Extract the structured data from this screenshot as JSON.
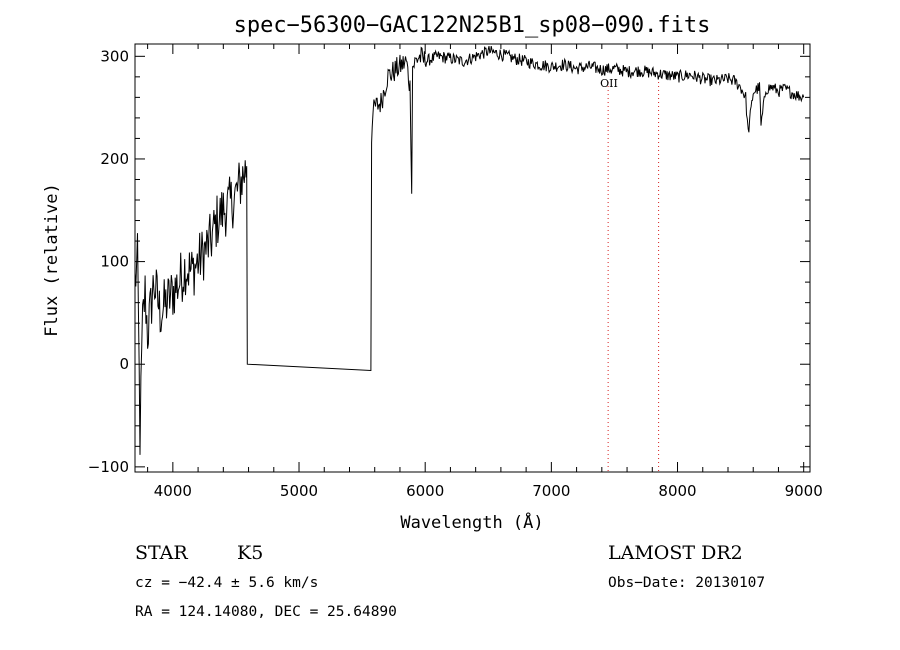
{
  "chart_data": {
    "type": "line",
    "title": "spec−56300−GAC122N25B1_sp08−090.fits",
    "xlabel": "Wavelength (Å)",
    "ylabel": "Flux (relative)",
    "xlim": [
      3700,
      9050
    ],
    "ylim": [
      -105,
      312
    ],
    "x_ticks": [
      4000,
      5000,
      6000,
      7000,
      8000,
      9000
    ],
    "y_ticks": [
      -100,
      0,
      100,
      200,
      300
    ],
    "grid": false,
    "series": [
      {
        "x": [
          3700,
          3720,
          3740,
          3760,
          3780,
          3800,
          3850,
          3900,
          3950,
          4000,
          4050,
          4100,
          4150,
          4200,
          4250,
          4300,
          4350,
          4400,
          4450,
          4500,
          4530,
          4560,
          4580,
          4585,
          4590,
          5570,
          5575,
          5580,
          5600,
          5650,
          5700,
          5750,
          5800,
          5850,
          5880,
          5893,
          5900,
          5950,
          6000,
          6100,
          6200,
          6300,
          6400,
          6500,
          6600,
          6700,
          6800,
          6900,
          7000,
          7100,
          7200,
          7300,
          7400,
          7500,
          7600,
          7700,
          7800,
          7900,
          8000,
          8100,
          8200,
          8300,
          8400,
          8450,
          8500,
          8540,
          8560,
          8600,
          8650,
          8662,
          8700,
          8750,
          8800,
          8850,
          8900,
          8950,
          9000
        ],
        "y": [
          80,
          100,
          -70,
          40,
          70,
          30,
          80,
          50,
          60,
          70,
          80,
          95,
          90,
          100,
          110,
          120,
          140,
          150,
          155,
          165,
          175,
          185,
          190,
          200,
          0,
          0,
          220,
          240,
          250,
          255,
          280,
          285,
          290,
          295,
          270,
          175,
          290,
          300,
          295,
          300,
          298,
          295,
          300,
          305,
          302,
          298,
          295,
          292,
          290,
          292,
          288,
          290,
          287,
          288,
          285,
          286,
          284,
          282,
          280,
          282,
          278,
          276,
          278,
          276,
          270,
          260,
          225,
          265,
          270,
          232,
          268,
          270,
          266,
          268,
          265,
          262,
          260
        ]
      }
    ],
    "markers": [
      {
        "label": "OII",
        "x": 7450
      },
      {
        "label": "",
        "x": 7850
      }
    ]
  },
  "info": {
    "class": "STAR",
    "subclass": "K5",
    "survey": "LAMOST DR2",
    "cz": "cz = −42.4 ± 5.6 km/s",
    "obs_date": "Obs−Date: 20130107",
    "coords": "RA = 124.14080, DEC =  25.64890"
  },
  "colors": {
    "line": "#000000",
    "marker": "#d62020",
    "axes": "#000000"
  }
}
